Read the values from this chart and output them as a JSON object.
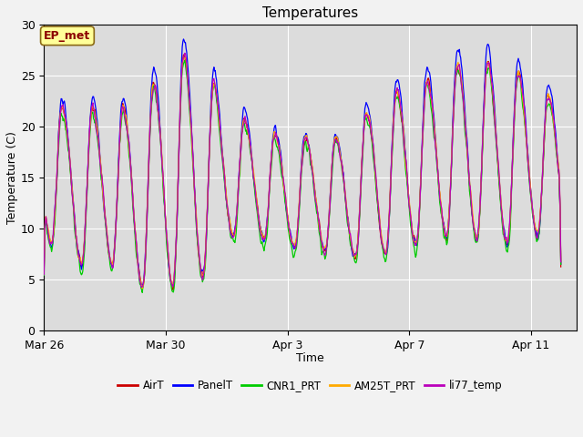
{
  "title": "Temperatures",
  "xlabel": "Time",
  "ylabel": "Temperature (C)",
  "ylim": [
    0,
    30
  ],
  "tick_labels": [
    "Mar 26",
    "Mar 30",
    "Apr 3",
    "Apr 7",
    "Apr 11"
  ],
  "series_names": [
    "AirT",
    "PanelT",
    "CNR1_PRT",
    "AM25T_PRT",
    "li77_temp"
  ],
  "series_colors": [
    "#cc0000",
    "#0000ff",
    "#00cc00",
    "#ffaa00",
    "#bb00bb"
  ],
  "annotation_text": "EP_met",
  "bg_color": "#dcdcdc",
  "grid_color": "#ffffff",
  "fig_width": 6.4,
  "fig_height": 4.8,
  "dpi": 100
}
